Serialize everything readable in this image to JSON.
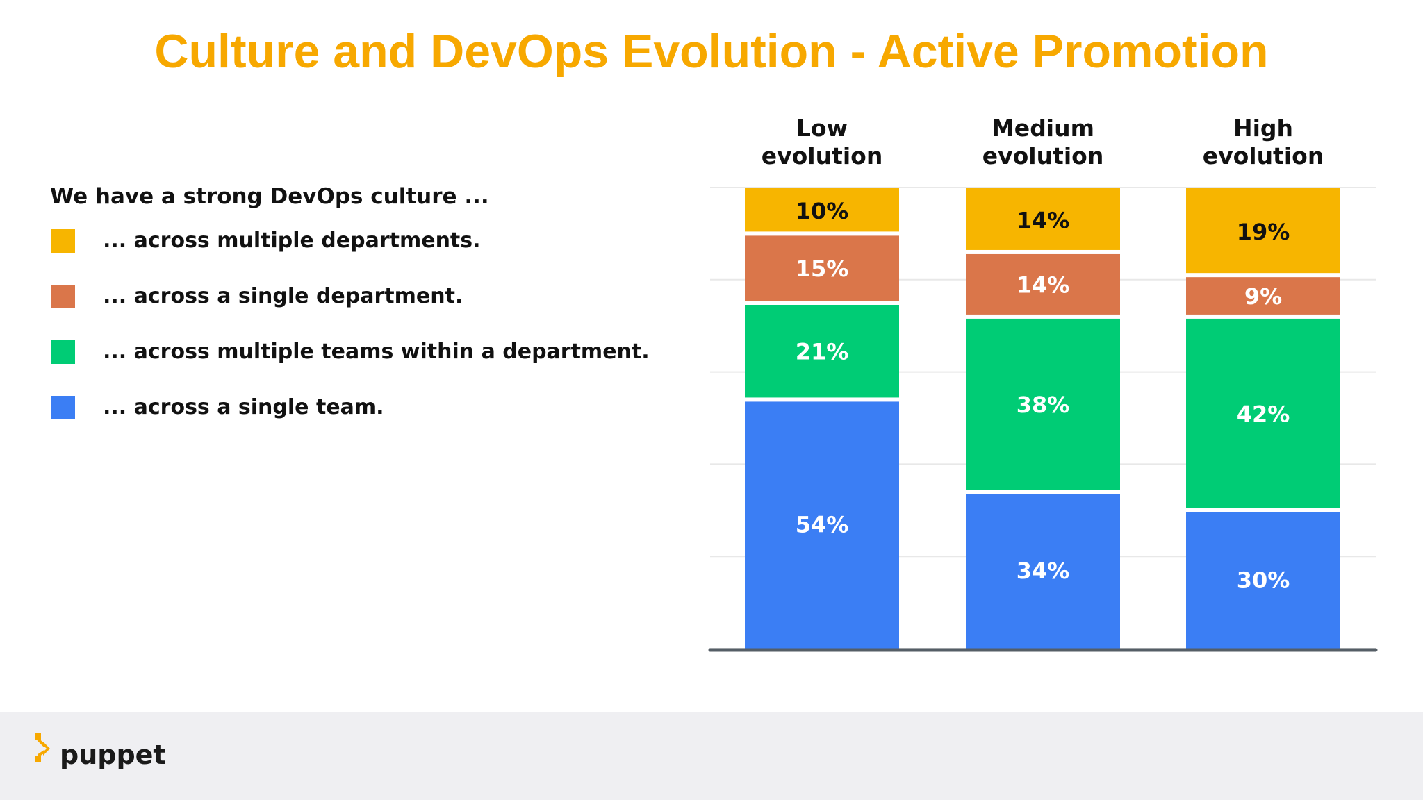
{
  "title": "Culture and DevOps Evolution - Active Promotion",
  "colors": {
    "title": "#f7a800",
    "multiple_departments": "#f7b500",
    "single_department": "#da764a",
    "multiple_teams": "#00cc75",
    "single_team": "#3b7ef4",
    "gridline": "#e8e8e8",
    "baseline": "#555e66",
    "logo": "#f7a800"
  },
  "legend": {
    "heading": "We have a strong DevOps culture ...",
    "items": [
      {
        "label": "... across multiple departments.",
        "color": "#f7b500"
      },
      {
        "label": "... across a single department.",
        "color": "#da764a"
      },
      {
        "label": "... across multiple teams within a department.",
        "color": "#00cc75"
      },
      {
        "label": "... across a single team.",
        "color": "#3b7ef4"
      }
    ]
  },
  "chart_data": {
    "type": "bar",
    "stacked": true,
    "categories": [
      [
        "Low",
        "evolution"
      ],
      [
        "Medium",
        "evolution"
      ],
      [
        "High",
        "evolution"
      ]
    ],
    "series": [
      {
        "name": "... across a single team.",
        "values": [
          54,
          34,
          30
        ],
        "labels": [
          "54%",
          "34%",
          "30%"
        ],
        "color": "#3b7ef4",
        "label_color": "#ffffff"
      },
      {
        "name": "... across multiple teams within a department.",
        "values": [
          21,
          38,
          42
        ],
        "labels": [
          "21%",
          "38%",
          "42%"
        ],
        "color": "#00cc75",
        "label_color": "#ffffff"
      },
      {
        "name": "... across a single department.",
        "values": [
          15,
          14,
          9
        ],
        "labels": [
          "15%",
          "14%",
          "9%"
        ],
        "color": "#da764a",
        "label_color": "#ffffff"
      },
      {
        "name": "... across multiple departments.",
        "values": [
          10,
          14,
          19
        ],
        "labels": [
          "10%",
          "14%",
          "19%"
        ],
        "color": "#f7b500",
        "label_color": "#111111"
      }
    ],
    "ylim": [
      0,
      100
    ],
    "grid": true,
    "legend_position": "left"
  },
  "footer": {
    "brand": "puppet"
  }
}
